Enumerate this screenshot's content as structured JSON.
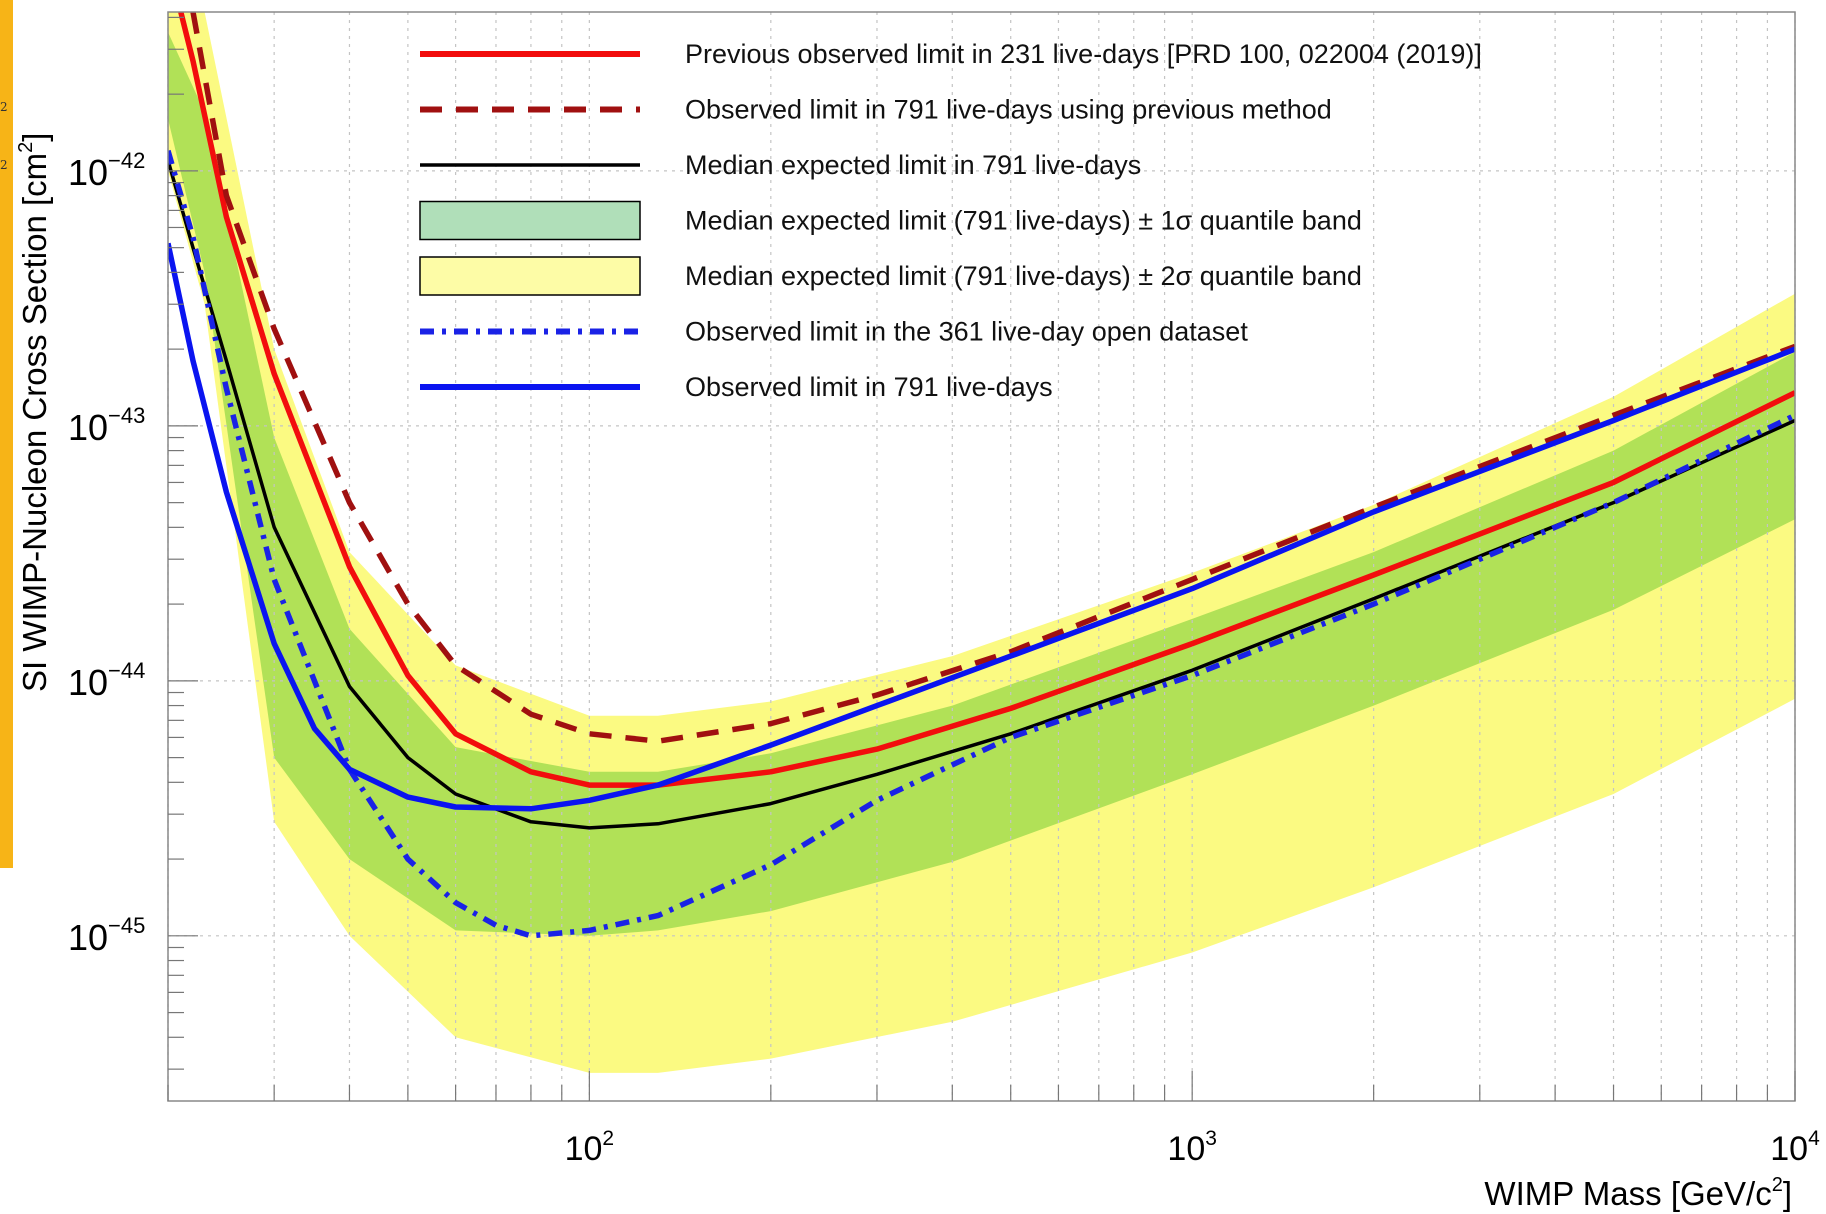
{
  "side_strip": {
    "color": "#f7b417",
    "glyph_a": "2",
    "glyph_b": "2"
  },
  "chart_data": {
    "type": "line",
    "title": "",
    "xlabel_base": "WIMP Mass [GeV/c",
    "xlabel_sup": "2",
    "xlabel_end": "]",
    "ylabel_base": "SI WIMP-Nucleon Cross Section [cm",
    "ylabel_sup": "2",
    "ylabel_end": "]",
    "x_scale": "log",
    "y_scale": "log",
    "xlim": [
      20,
      10000
    ],
    "ylim": [
      2.25e-46,
      4.2e-42
    ],
    "grid": true,
    "legend_position": "top-center",
    "x_ticks": [
      {
        "value": 100,
        "base": "10",
        "exp": "2"
      },
      {
        "value": 1000,
        "base": "10",
        "exp": "3"
      },
      {
        "value": 10000,
        "base": "10",
        "exp": "4"
      }
    ],
    "y_ticks": [
      {
        "value": 1e-42,
        "base": "10",
        "exp": "−42"
      },
      {
        "value": 1e-43,
        "base": "10",
        "exp": "−43"
      },
      {
        "value": 1e-44,
        "base": "10",
        "exp": "−44"
      },
      {
        "value": 1e-45,
        "base": "10",
        "exp": "−45"
      }
    ],
    "bands": [
      {
        "name": "Median expected limit (791 live-days) ± 2σ quantile band",
        "color": "#fbfa82",
        "x": [
          20,
          23,
          30,
          40,
          60,
          100,
          130,
          200,
          400,
          1000,
          2000,
          5000,
          10000
        ],
        "lower": [
          1e-42,
          3e-43,
          2.8e-45,
          1e-45,
          4e-46,
          2.9e-46,
          2.9e-46,
          3.3e-46,
          4.6e-46,
          8.6e-46,
          1.55e-45,
          3.6e-45,
          8.5e-45
        ],
        "upper": [
          4.2e-42,
          4.2e-42,
          2e-43,
          3.2e-44,
          1.15e-44,
          7.3e-45,
          7.3e-45,
          8.3e-45,
          1.25e-44,
          2.65e-44,
          4.9e-44,
          1.3e-43,
          3.3e-43
        ]
      },
      {
        "name": "Median expected limit (791 live-days) ± 1σ quantile band",
        "color": "#b1e157",
        "x": [
          20,
          23,
          30,
          40,
          60,
          100,
          130,
          200,
          400,
          1000,
          2000,
          5000,
          10000
        ],
        "lower": [
          1.6e-42,
          4e-43,
          5e-45,
          2e-45,
          1.05e-45,
          1e-45,
          1.05e-45,
          1.25e-45,
          1.95e-45,
          4.3e-45,
          8e-45,
          1.9e-44,
          4.3e-44
        ],
        "upper": [
          3.5e-42,
          1.7e-42,
          9e-44,
          1.6e-44,
          5.5e-45,
          4.4e-45,
          4.4e-45,
          5.2e-45,
          8e-45,
          1.75e-44,
          3.2e-44,
          8e-44,
          1.95e-43
        ]
      }
    ],
    "series": [
      {
        "name": "Previous observed limit in 231 live-days [PRD 100, 022004 (2019)]",
        "color": "#f20d0d",
        "style": "solid",
        "x": [
          21,
          22,
          25,
          30,
          40,
          50,
          60,
          80,
          100,
          130,
          200,
          300,
          500,
          1000,
          2000,
          5000,
          10000
        ],
        "y": [
          4.2e-42,
          2.7e-42,
          6.6e-43,
          1.6e-43,
          2.8e-44,
          1.05e-44,
          6.2e-45,
          4.4e-45,
          3.9e-45,
          3.9e-45,
          4.4e-45,
          5.4e-45,
          7.8e-45,
          1.4e-44,
          2.6e-44,
          6e-44,
          1.35e-43
        ]
      },
      {
        "name": "Observed limit in 791 live-days using previous method",
        "color": "#a01010",
        "style": "dashed",
        "x": [
          22,
          25,
          30,
          40,
          50,
          60,
          80,
          100,
          130,
          200,
          300,
          500,
          1000,
          2000,
          5000,
          10000
        ],
        "y": [
          4.2e-42,
          8e-43,
          2.4e-43,
          5e-44,
          2e-44,
          1.15e-44,
          7.4e-45,
          6.2e-45,
          5.8e-45,
          6.8e-45,
          8.8e-45,
          1.3e-44,
          2.5e-44,
          4.8e-44,
          1.1e-43,
          2.05e-43
        ]
      },
      {
        "name": "Median expected limit in 791 live-days",
        "color": "#000000",
        "style": "solid",
        "x": [
          20,
          22,
          25,
          30,
          40,
          50,
          60,
          80,
          100,
          130,
          200,
          300,
          500,
          1000,
          2000,
          5000,
          10000
        ],
        "y": [
          1.1e-42,
          5e-43,
          1.8e-43,
          4e-44,
          9.5e-45,
          5e-45,
          3.6e-45,
          2.8e-45,
          2.65e-45,
          2.75e-45,
          3.3e-45,
          4.3e-45,
          6.2e-45,
          1.1e-44,
          2.1e-44,
          5e-44,
          1.05e-43
        ]
      },
      {
        "name": "Observed limit in the 361 live-day open dataset",
        "color": "#1a22e6",
        "style": "dashdot",
        "x": [
          20,
          22,
          25,
          30,
          40,
          50,
          60,
          70,
          80,
          100,
          130,
          200,
          300,
          500,
          1000,
          2000,
          5000,
          10000
        ],
        "y": [
          1.2e-42,
          5.5e-43,
          1.4e-43,
          2.5e-44,
          4.5e-45,
          2e-45,
          1.35e-45,
          1.1e-45,
          1e-45,
          1.05e-45,
          1.2e-45,
          1.9e-45,
          3.4e-45,
          6e-45,
          1.05e-44,
          2e-44,
          5e-44,
          1.1e-43
        ]
      },
      {
        "name": "Observed limit in 791 live-days",
        "color": "#0a14f0",
        "style": "solid",
        "x": [
          20,
          22,
          25,
          30,
          35,
          40,
          50,
          60,
          80,
          100,
          130,
          200,
          300,
          500,
          1000,
          2000,
          5000,
          10000
        ],
        "y": [
          5.2e-43,
          1.8e-43,
          5.5e-44,
          1.4e-44,
          6.5e-45,
          4.5e-45,
          3.5e-45,
          3.2e-45,
          3.15e-45,
          3.4e-45,
          3.9e-45,
          5.6e-45,
          8e-45,
          1.25e-44,
          2.3e-44,
          4.6e-44,
          1.05e-43,
          2e-43
        ]
      }
    ],
    "legend": [
      {
        "label": "Previous observed limit in 231 live-days [PRD 100, 022004 (2019)]",
        "kind": "line",
        "color": "#f20d0d",
        "style": "solid"
      },
      {
        "label": "Observed limit in 791 live-days using previous method",
        "kind": "line",
        "color": "#a01010",
        "style": "dashed"
      },
      {
        "label": "Median expected limit in 791 live-days",
        "kind": "line",
        "color": "#000000",
        "style": "solid"
      },
      {
        "label": "Median expected limit (791 live-days) ± 1σ quantile band",
        "kind": "box",
        "color": "#b0dfb9"
      },
      {
        "label": "Median expected limit (791 live-days) ± 2σ quantile band",
        "kind": "box",
        "color": "#fdfca6"
      },
      {
        "label": "Observed limit in the 361 live-day open dataset",
        "kind": "line",
        "color": "#1a22e6",
        "style": "dashdot"
      },
      {
        "label": "Observed limit in 791 live-days",
        "kind": "line",
        "color": "#0a14f0",
        "style": "solid"
      }
    ]
  }
}
